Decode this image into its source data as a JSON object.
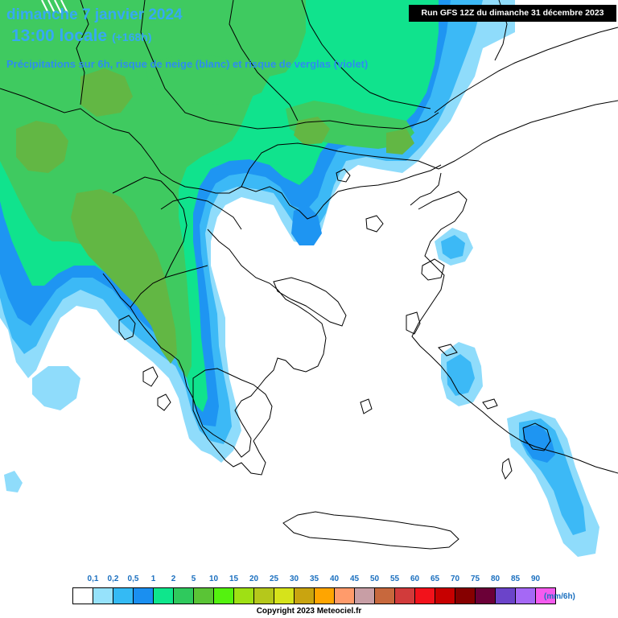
{
  "header": {
    "date_line": "dimanche 7 janvier 2024",
    "time_line": "13:00 locale",
    "lead_time": "(+168h)",
    "subtitle": "Précipitations sur 6h, risque de neige (blanc) et risque de verglas (violet)"
  },
  "run_info": "Run GFS 12Z du dimanche 31 décembre 2023",
  "legend": {
    "labels": [
      "0,1",
      "0,2",
      "0,5",
      "1",
      "2",
      "5",
      "10",
      "15",
      "20",
      "25",
      "30",
      "35",
      "40",
      "45",
      "50",
      "55",
      "60",
      "65",
      "70",
      "75",
      "80",
      "85",
      "90"
    ],
    "colors": [
      "#ffffff",
      "#96e2fb",
      "#34baf4",
      "#1a8ff0",
      "#0ee68c",
      "#2fc95d",
      "#5ac436",
      "#54f20f",
      "#9fe014",
      "#b5c81b",
      "#d6e31b",
      "#c9a410",
      "#ffa500",
      "#ff9b6b",
      "#c89ea5",
      "#c7683d",
      "#d13b3b",
      "#f2121b",
      "#c70000",
      "#860000",
      "#6b0037",
      "#6b44c9",
      "#a568f5",
      "#f55bee"
    ],
    "unit": "(mm/6h)"
  },
  "copyright": "Copyright 2023 Meteociel.fr",
  "map": {
    "palette": {
      "light_blue": "#8fdcfb",
      "mid_blue": "#3cb9f6",
      "blue": "#1e95f2",
      "aqua_green": "#10e38d",
      "green": "#3fca60",
      "olive_green": "#62b744",
      "coast": "#000000"
    }
  }
}
